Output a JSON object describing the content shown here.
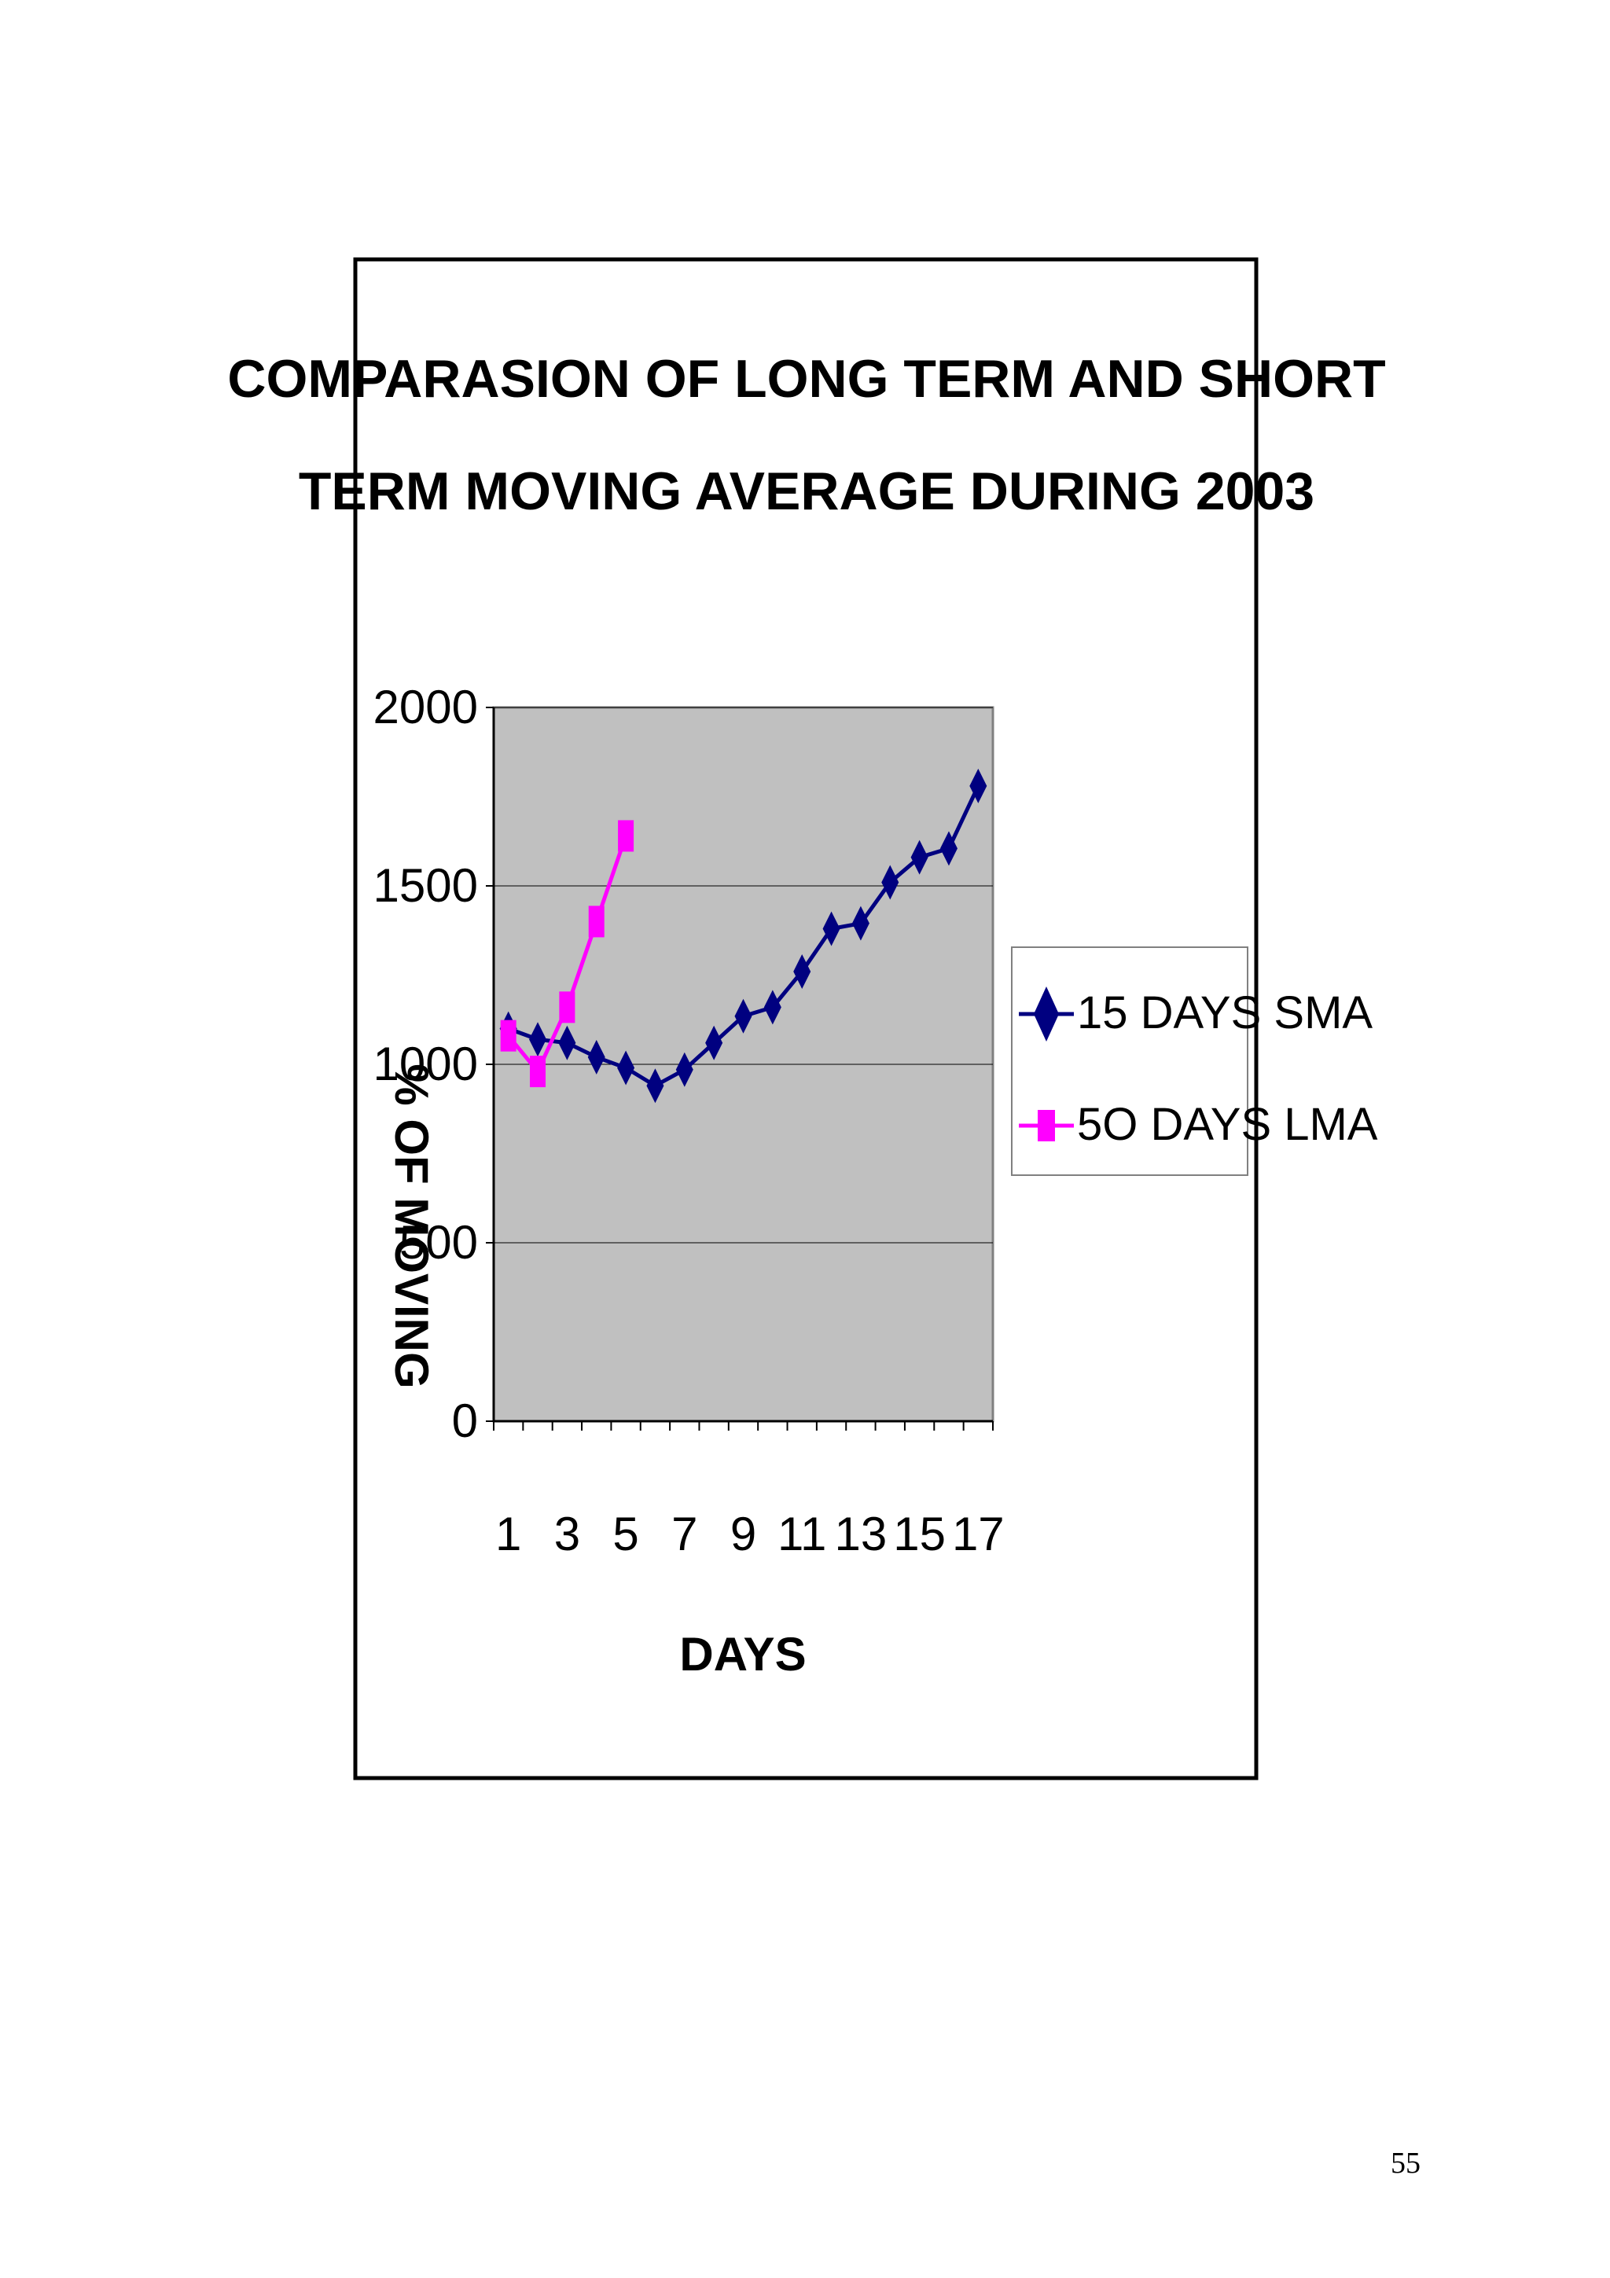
{
  "page": {
    "number": "55"
  },
  "chart_data": {
    "type": "line",
    "title_lines": [
      "COMPARASION OF LONG TERM AND SHORT",
      "TERM MOVING AVERAGE DURING 2003"
    ],
    "xlabel": "DAYS",
    "ylabel": "% OF MOVING",
    "x": [
      1,
      2,
      3,
      4,
      5,
      6,
      7,
      8,
      9,
      10,
      11,
      12,
      13,
      14,
      15,
      16,
      17
    ],
    "x_tick_labels": [
      "1",
      "3",
      "5",
      "7",
      "9",
      "11",
      "13",
      "15",
      "17"
    ],
    "x_tick_values": [
      1,
      3,
      5,
      7,
      9,
      11,
      13,
      15,
      17
    ],
    "ylim": [
      0,
      2000
    ],
    "y_ticks": [
      0,
      500,
      1000,
      1500,
      2000
    ],
    "grid": true,
    "plot_background": "#c0c0c0",
    "legend_position": "right",
    "series": [
      {
        "name": "15 DAYS SMA",
        "color": "#000080",
        "marker": "diamond",
        "x": [
          1,
          2,
          3,
          4,
          5,
          6,
          7,
          8,
          9,
          10,
          11,
          12,
          13,
          14,
          15,
          16,
          17
        ],
        "values": [
          1100,
          1070,
          1060,
          1020,
          990,
          940,
          985,
          1060,
          1135,
          1160,
          1260,
          1380,
          1395,
          1510,
          1580,
          1605,
          1780
        ]
      },
      {
        "name": "5O DAYS LMA",
        "color": "#ff00ff",
        "marker": "square",
        "x": [
          1,
          2,
          3,
          4,
          5
        ],
        "values": [
          1080,
          980,
          1160,
          1400,
          1640
        ]
      }
    ]
  }
}
